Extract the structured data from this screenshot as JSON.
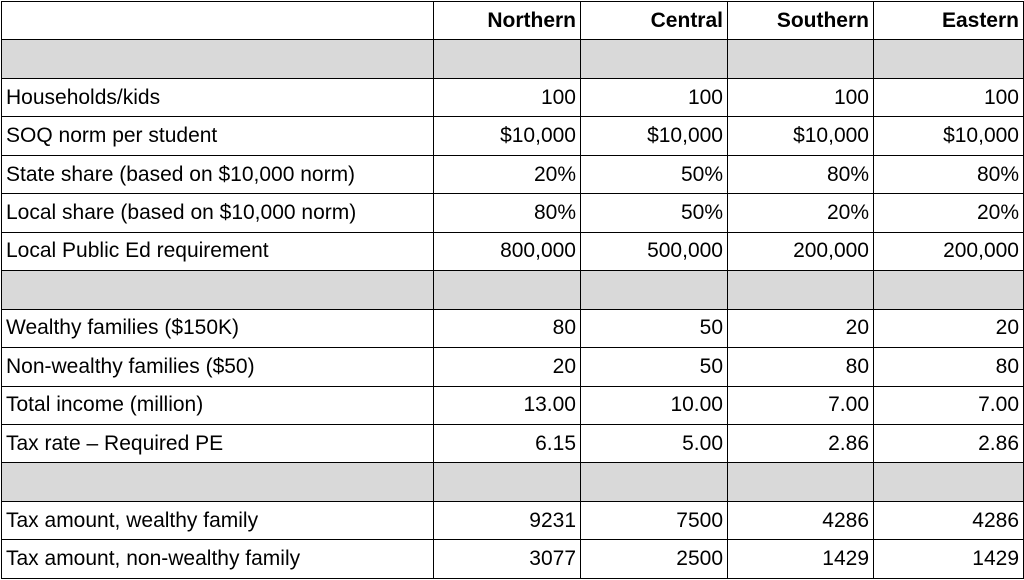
{
  "table": {
    "columns": [
      "Northern",
      "Central",
      "Southern",
      "Eastern"
    ],
    "sections": [
      [
        [
          "Households/kids",
          "100",
          "100",
          "100",
          "100"
        ],
        [
          "SOQ norm per student",
          "$10,000",
          "$10,000",
          "$10,000",
          "$10,000"
        ],
        [
          "State share (based on $10,000 norm)",
          "20%",
          "50%",
          "80%",
          "80%"
        ],
        [
          "Local share (based on $10,000 norm)",
          "80%",
          "50%",
          "20%",
          "20%"
        ],
        [
          "Local Public Ed requirement",
          "800,000",
          "500,000",
          "200,000",
          "200,000"
        ]
      ],
      [
        [
          "Wealthy families ($150K)",
          "80",
          "50",
          "20",
          "20"
        ],
        [
          "Non-wealthy families ($50)",
          "20",
          "50",
          "80",
          "80"
        ],
        [
          "Total income (million)",
          "13.00",
          "10.00",
          "7.00",
          "7.00"
        ],
        [
          "Tax rate – Required PE",
          "6.15",
          "5.00",
          "2.86",
          "2.86"
        ]
      ],
      [
        [
          "Tax amount, wealthy family",
          "9231",
          "7500",
          "4286",
          "4286"
        ],
        [
          "Tax amount, non-wealthy family",
          "3077",
          "2500",
          "1429",
          "1429"
        ]
      ]
    ]
  }
}
